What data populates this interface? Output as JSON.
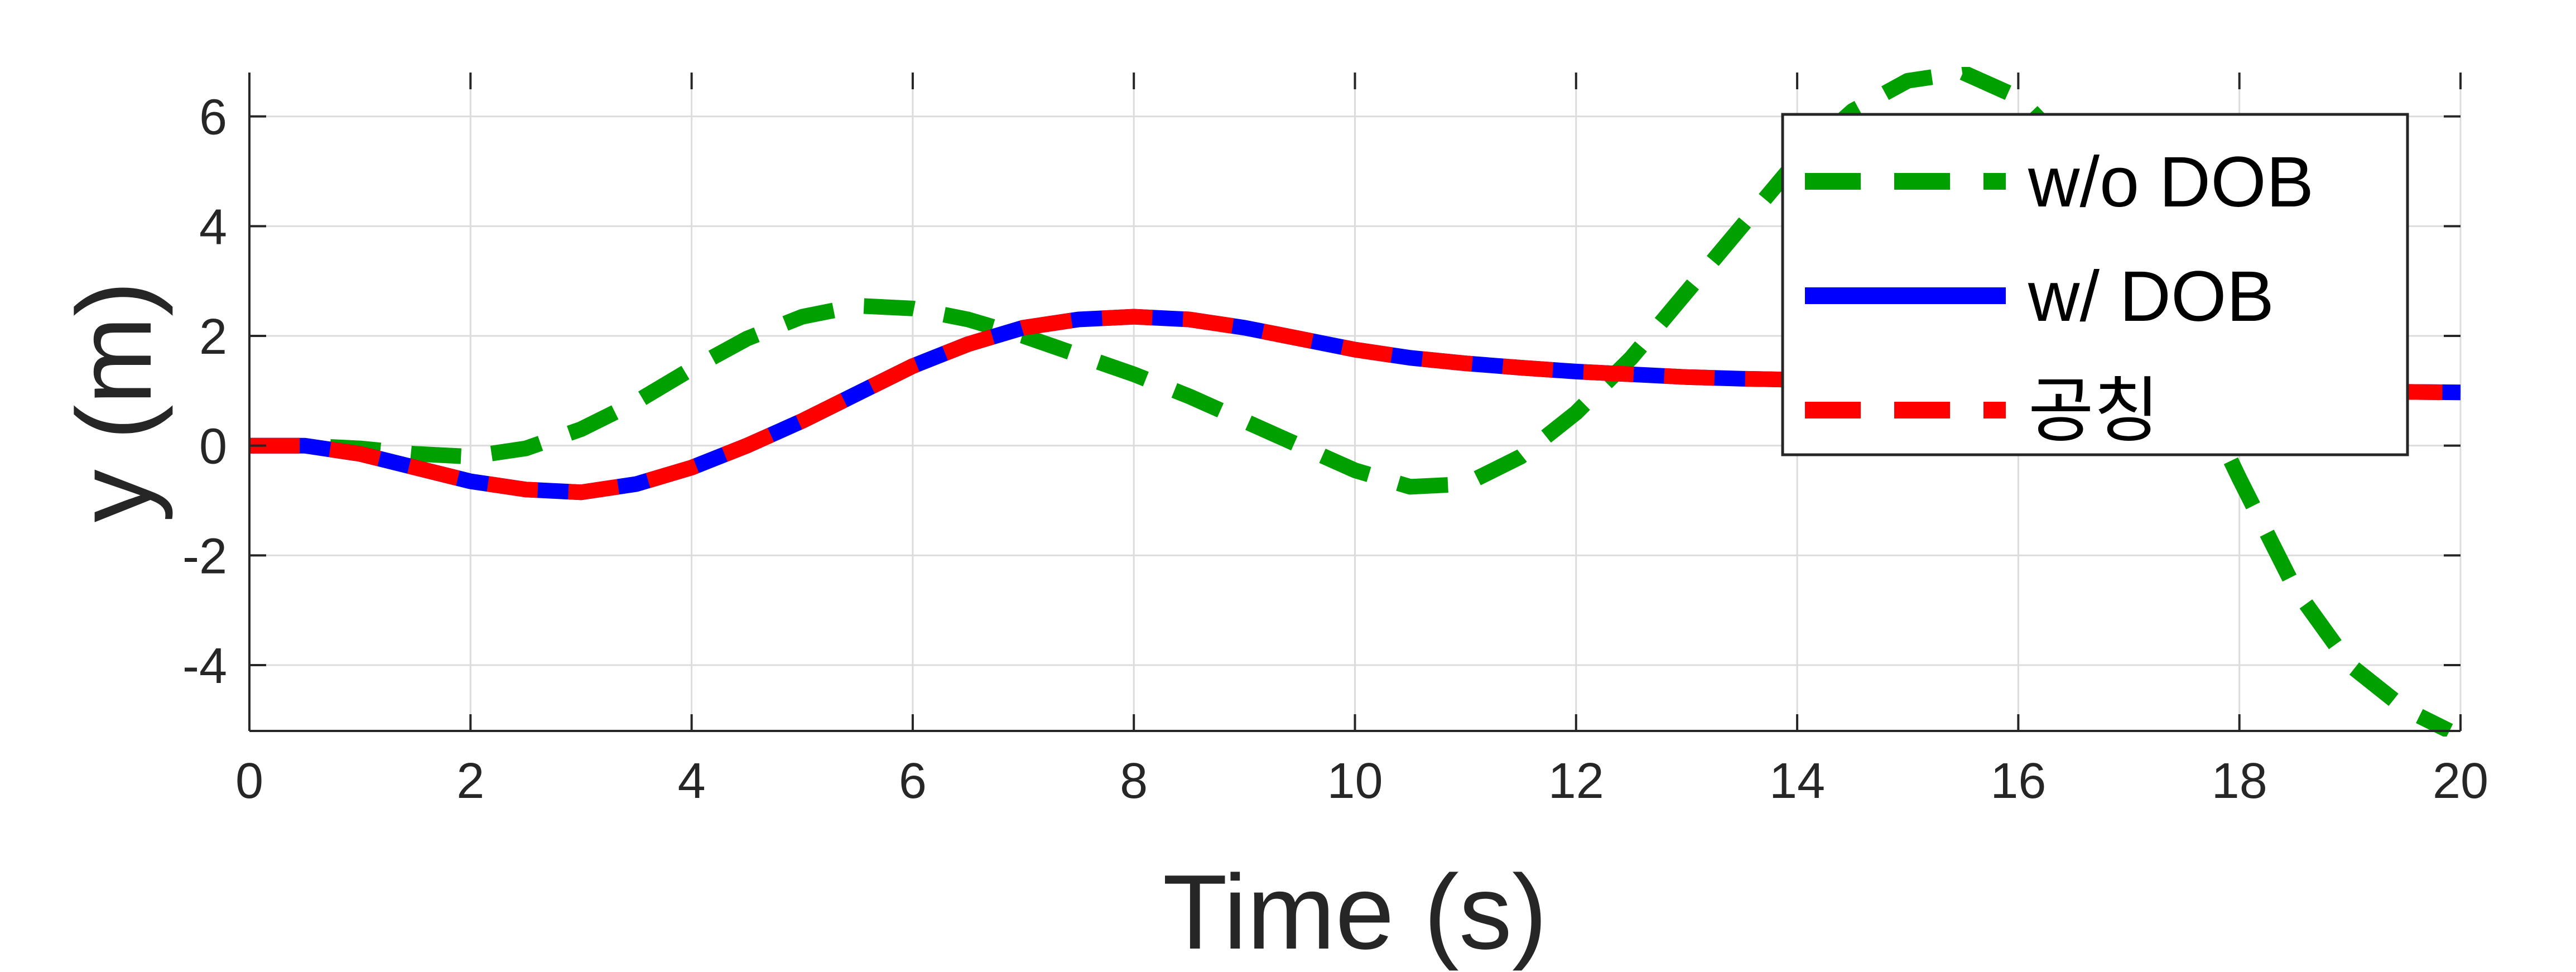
{
  "chart_data": {
    "type": "line",
    "xlabel": "Time (s)",
    "ylabel": "y (m)",
    "xlim": [
      0,
      20
    ],
    "ylim": [
      -5.2,
      6.8
    ],
    "xticks": [
      0,
      2,
      4,
      6,
      8,
      10,
      12,
      14,
      16,
      18,
      20
    ],
    "yticks": [
      -4,
      -2,
      0,
      2,
      4,
      6
    ],
    "grid": true,
    "legend_position": "top-right",
    "series": [
      {
        "name": "w/o DOB",
        "color": "#00a000",
        "line_style": "dashed",
        "x": [
          0,
          0.5,
          1,
          1.5,
          2,
          2.5,
          3,
          3.5,
          4,
          4.5,
          5,
          5.5,
          6,
          6.5,
          7,
          7.5,
          8,
          8.5,
          9,
          9.5,
          10,
          10.5,
          11,
          11.5,
          12,
          12.5,
          13,
          13.5,
          14,
          14.5,
          15,
          15.5,
          16,
          16.5,
          17,
          17.5,
          18,
          18.5,
          19,
          19.5,
          19.9
        ],
        "y": [
          0,
          0,
          -0.05,
          -0.15,
          -0.2,
          -0.05,
          0.3,
          0.8,
          1.4,
          1.95,
          2.35,
          2.55,
          2.5,
          2.3,
          2.0,
          1.65,
          1.3,
          0.9,
          0.45,
          0.0,
          -0.45,
          -0.75,
          -0.7,
          -0.2,
          0.6,
          1.6,
          2.8,
          4.0,
          5.2,
          6.1,
          6.65,
          6.8,
          6.35,
          5.3,
          3.6,
          1.5,
          -0.6,
          -2.6,
          -4.0,
          -4.8,
          -5.2
        ]
      },
      {
        "name": "w/ DOB",
        "color": "#0000ff",
        "line_style": "solid",
        "x": [
          0,
          0.5,
          1,
          1.5,
          2,
          2.5,
          3,
          3.5,
          4,
          4.5,
          5,
          5.5,
          6,
          6.5,
          7,
          7.5,
          8,
          8.5,
          9,
          9.5,
          10,
          10.5,
          11,
          11.5,
          12,
          12.5,
          13,
          13.5,
          14,
          14.5,
          15,
          15.5,
          16,
          16.5,
          17,
          17.5,
          18,
          18.5,
          19,
          19.5,
          20
        ],
        "y": [
          0,
          0,
          -0.15,
          -0.4,
          -0.65,
          -0.8,
          -0.85,
          -0.7,
          -0.4,
          0.0,
          0.45,
          0.95,
          1.45,
          1.85,
          2.15,
          2.3,
          2.35,
          2.3,
          2.15,
          1.95,
          1.75,
          1.6,
          1.5,
          1.42,
          1.35,
          1.3,
          1.25,
          1.22,
          1.2,
          1.17,
          1.15,
          1.12,
          1.1,
          1.08,
          1.06,
          1.04,
          1.02,
          1.0,
          0.99,
          0.98,
          0.97
        ]
      },
      {
        "name": "공칭",
        "color": "#ff0000",
        "line_style": "dashed",
        "x": [
          0,
          0.5,
          1,
          1.5,
          2,
          2.5,
          3,
          3.5,
          4,
          4.5,
          5,
          5.5,
          6,
          6.5,
          7,
          7.5,
          8,
          8.5,
          9,
          9.5,
          10,
          10.5,
          11,
          11.5,
          12,
          12.5,
          13,
          13.5,
          14,
          14.5,
          15,
          15.5,
          16,
          16.5,
          17,
          17.5,
          18,
          18.5,
          19,
          19.5,
          20
        ],
        "y": [
          0,
          0,
          -0.15,
          -0.4,
          -0.65,
          -0.8,
          -0.85,
          -0.7,
          -0.4,
          0.0,
          0.45,
          0.95,
          1.45,
          1.85,
          2.15,
          2.3,
          2.35,
          2.3,
          2.15,
          1.95,
          1.75,
          1.6,
          1.5,
          1.42,
          1.35,
          1.3,
          1.25,
          1.22,
          1.2,
          1.17,
          1.15,
          1.12,
          1.1,
          1.08,
          1.06,
          1.04,
          1.02,
          1.0,
          0.99,
          0.98,
          0.97
        ]
      }
    ]
  }
}
